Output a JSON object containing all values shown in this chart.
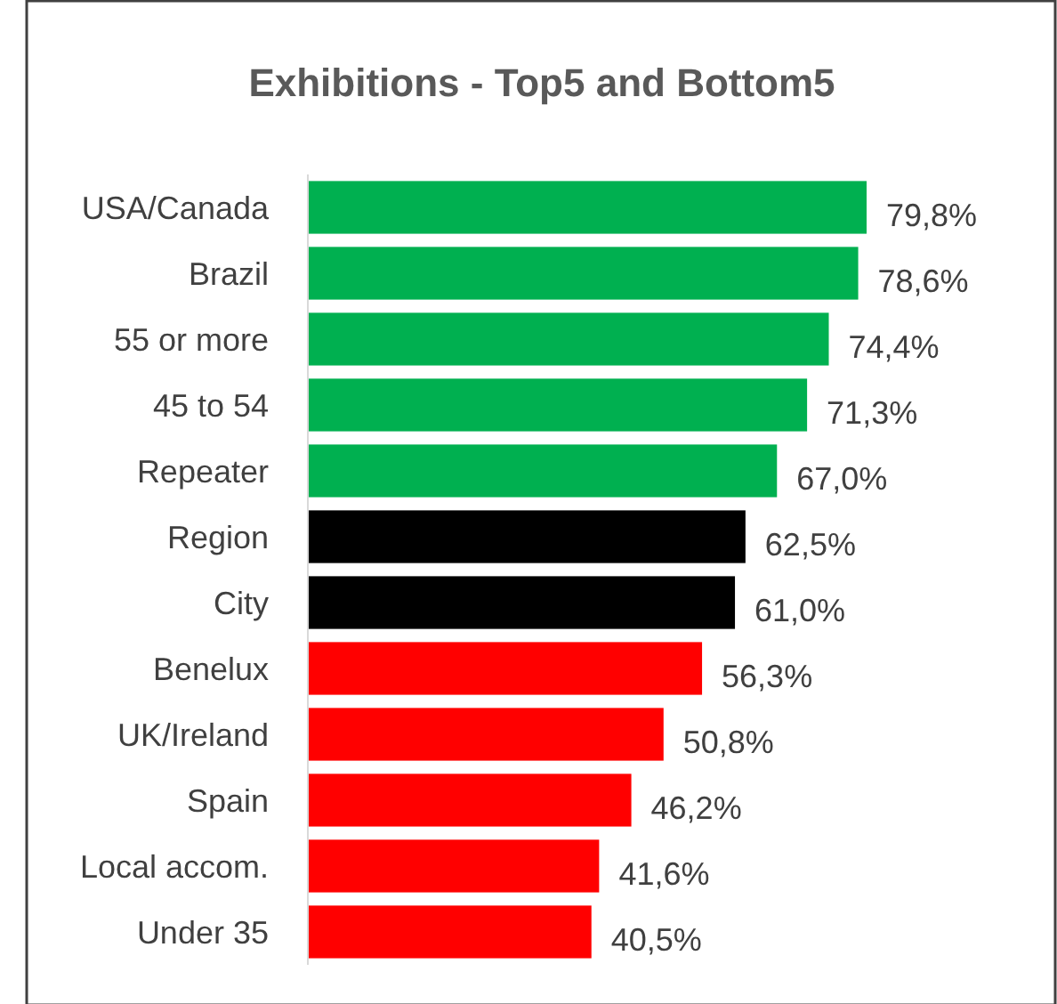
{
  "chart_data": {
    "type": "bar",
    "orientation": "horizontal",
    "title": "Exhibitions - Top5 and Bottom5",
    "categories": [
      "USA/Canada",
      "Brazil",
      "55 or more",
      "45 to 54",
      "Repeater",
      "Region",
      "City",
      "Benelux",
      "UK/Ireland",
      "Spain",
      "Local accom.",
      "Under 35"
    ],
    "values": [
      79.8,
      78.6,
      74.4,
      71.3,
      67.0,
      62.5,
      61.0,
      56.3,
      50.8,
      46.2,
      41.6,
      40.5
    ],
    "colors": [
      "#00b050",
      "#00b050",
      "#00b050",
      "#00b050",
      "#00b050",
      "#000000",
      "#000000",
      "#ff0000",
      "#ff0000",
      "#ff0000",
      "#ff0000",
      "#ff0000"
    ],
    "value_labels": [
      "79,8%",
      "78,6%",
      "74,4%",
      "71,3%",
      "67,0%",
      "62,5%",
      "61,0%",
      "56,3%",
      "50,8%",
      "46,2%",
      "41,6%",
      "40,5%"
    ]
  }
}
